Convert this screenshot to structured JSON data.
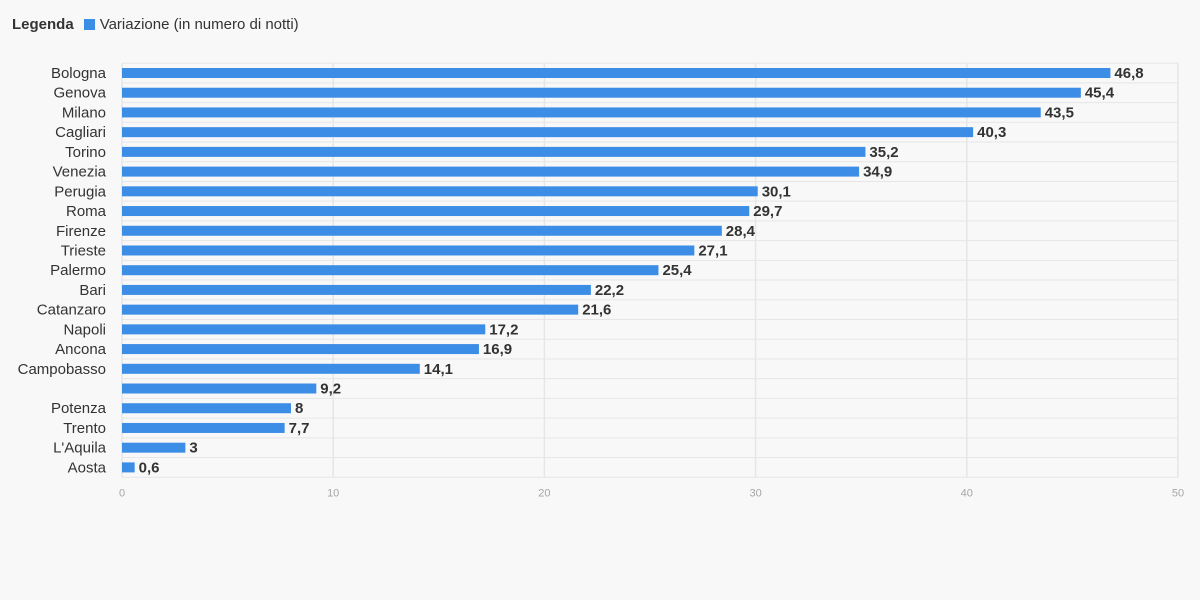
{
  "legend": {
    "title": "Legenda",
    "series_label": "Variazione (in numero di notti)"
  },
  "colors": {
    "bar": "#3b8de6",
    "grid": "#e6e6e6",
    "axis_text": "#a6a6a6",
    "text": "#333333"
  },
  "chart_data": {
    "type": "bar",
    "orientation": "horizontal",
    "categories": [
      "Bologna",
      "Genova",
      "Milano",
      "Cagliari",
      "Torino",
      "Venezia",
      "Perugia",
      "Roma",
      "Firenze",
      "Trieste",
      "Palermo",
      "Bari",
      "Catanzaro",
      "Napoli",
      "Ancona",
      "Campobasso",
      "",
      "Potenza",
      "Trento",
      "L'Aquila",
      "Aosta"
    ],
    "series": [
      {
        "name": "Variazione (in numero di notti)",
        "values": [
          46.8,
          45.4,
          43.5,
          40.3,
          35.2,
          34.9,
          30.1,
          29.7,
          28.4,
          27.1,
          25.4,
          22.2,
          21.6,
          17.2,
          16.9,
          14.1,
          9.2,
          8,
          7.7,
          3,
          0.6
        ]
      }
    ],
    "value_labels": [
      "46,8",
      "45,4",
      "43,5",
      "40,3",
      "35,2",
      "34,9",
      "30,1",
      "29,7",
      "28,4",
      "27,1",
      "25,4",
      "22,2",
      "21,6",
      "17,2",
      "16,9",
      "14,1",
      "9,2",
      "8",
      "7,7",
      "3",
      "0,6"
    ],
    "xlim": [
      0,
      50
    ],
    "xticks": [
      0,
      10,
      20,
      30,
      40,
      50
    ],
    "xlabel": "",
    "ylabel": "",
    "title": "",
    "grid": true,
    "legend_position": "top-left"
  }
}
